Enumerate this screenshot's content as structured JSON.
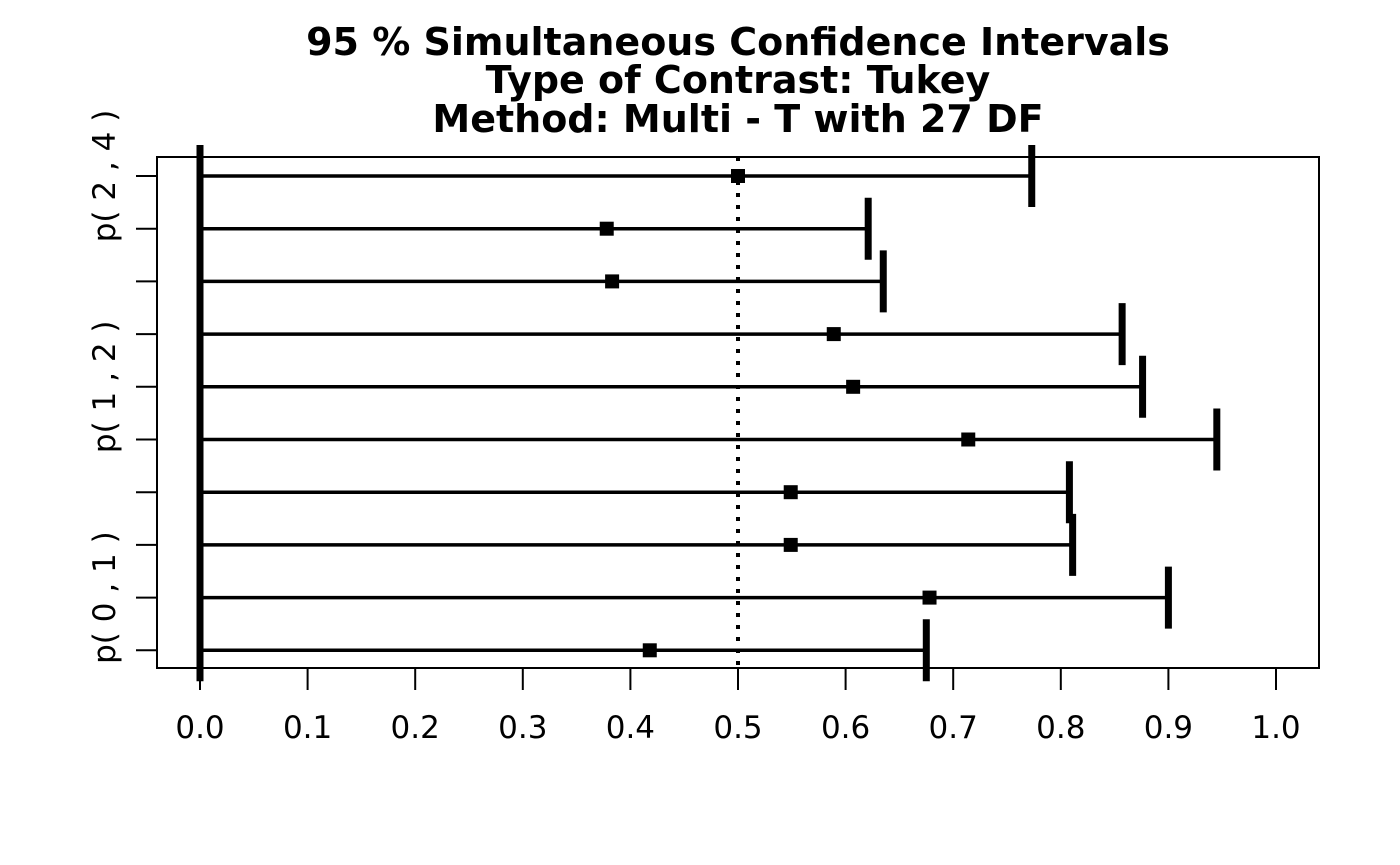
{
  "chart_data": {
    "type": "interval",
    "title_lines": [
      "95 % Simultaneous Confidence Intervals",
      "Type of Contrast: Tukey",
      "Method: Multi - T with 27 DF"
    ],
    "xlim": [
      0.0,
      1.0
    ],
    "x_ticks": [
      "0.0",
      "0.1",
      "0.2",
      "0.3",
      "0.4",
      "0.5",
      "0.6",
      "0.7",
      "0.8",
      "0.9",
      "1.0"
    ],
    "reference_line": 0.5,
    "y_tick_labels": [
      "p( 2 , 4 )",
      "p( 1 , 2 )",
      "p( 0 , 1 )"
    ],
    "intervals": [
      {
        "lower": 0.0,
        "estimate": 0.5,
        "upper": 0.773
      },
      {
        "lower": 0.0,
        "estimate": 0.378,
        "upper": 0.621
      },
      {
        "lower": 0.0,
        "estimate": 0.383,
        "upper": 0.635
      },
      {
        "lower": 0.0,
        "estimate": 0.589,
        "upper": 0.857
      },
      {
        "lower": 0.0,
        "estimate": 0.607,
        "upper": 0.876
      },
      {
        "lower": 0.0,
        "estimate": 0.714,
        "upper": 0.945
      },
      {
        "lower": 0.0,
        "estimate": 0.549,
        "upper": 0.808
      },
      {
        "lower": 0.0,
        "estimate": 0.549,
        "upper": 0.811
      },
      {
        "lower": 0.0,
        "estimate": 0.678,
        "upper": 0.9
      },
      {
        "lower": 0.0,
        "estimate": 0.418,
        "upper": 0.675
      }
    ],
    "grid": false
  }
}
